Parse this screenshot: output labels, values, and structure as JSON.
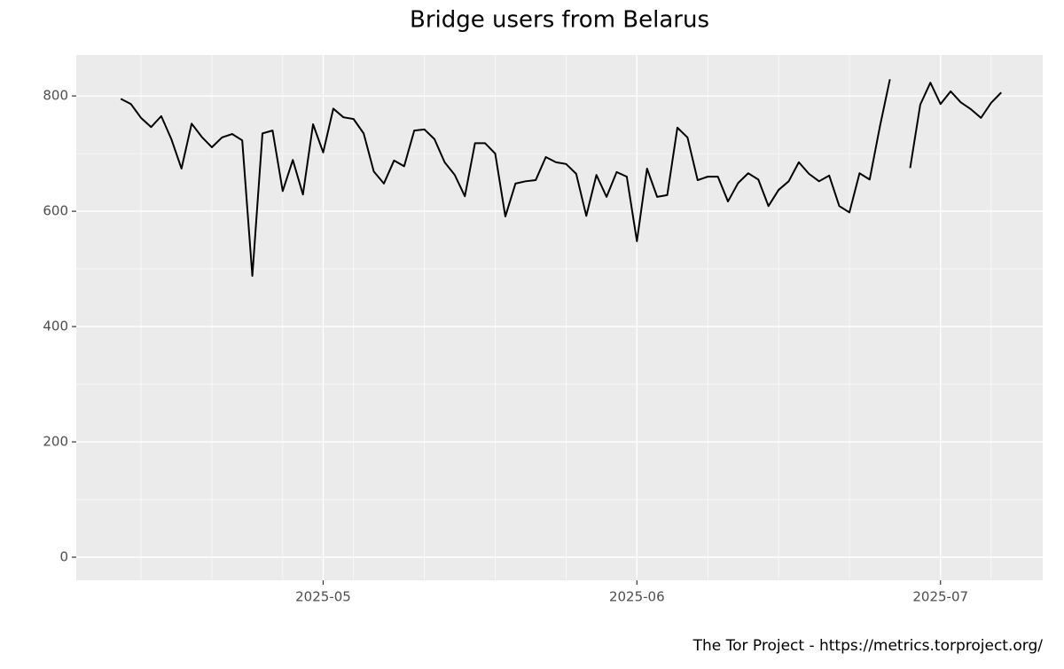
{
  "chart_data": {
    "type": "line",
    "title": "Bridge users from Belarus",
    "caption": "The Tor Project - https://metrics.torproject.org/",
    "series": [
      {
        "color": "#000000",
        "values": [
          795,
          786,
          762,
          746,
          765,
          725,
          674,
          752,
          729,
          711,
          728,
          734,
          723,
          488,
          735,
          740,
          635,
          689,
          629,
          751,
          702,
          778,
          763,
          760,
          735,
          669,
          648,
          688,
          678,
          740,
          742,
          725,
          685,
          663,
          626,
          718,
          718,
          700,
          591,
          648,
          652,
          654,
          694,
          685,
          682,
          665,
          592,
          663,
          625,
          668,
          660,
          548,
          674,
          625,
          628,
          745,
          728,
          654,
          660,
          660,
          617,
          649,
          666,
          655,
          609,
          637,
          652,
          685,
          665,
          652,
          662,
          609,
          598,
          666,
          655,
          746,
          829,
          null,
          675,
          785,
          823,
          786,
          808,
          789,
          777,
          762,
          788,
          806
        ]
      }
    ],
    "xlim": [
      -4.4,
      91.1
    ],
    "xticks": [
      {
        "value": 20,
        "label": "2025-05"
      },
      {
        "value": 51,
        "label": "2025-06"
      },
      {
        "value": 81,
        "label": "2025-07"
      }
    ],
    "x_minor_ticks": [
      2,
      9,
      16,
      23,
      30,
      37,
      44,
      58,
      65,
      72,
      86
    ],
    "ylim": [
      -40,
      871
    ],
    "yticks": [
      0,
      200,
      400,
      600,
      800
    ],
    "y_minor_ticks": [
      100,
      300,
      500,
      700
    ],
    "grid": true,
    "background": "#ebebeb"
  }
}
